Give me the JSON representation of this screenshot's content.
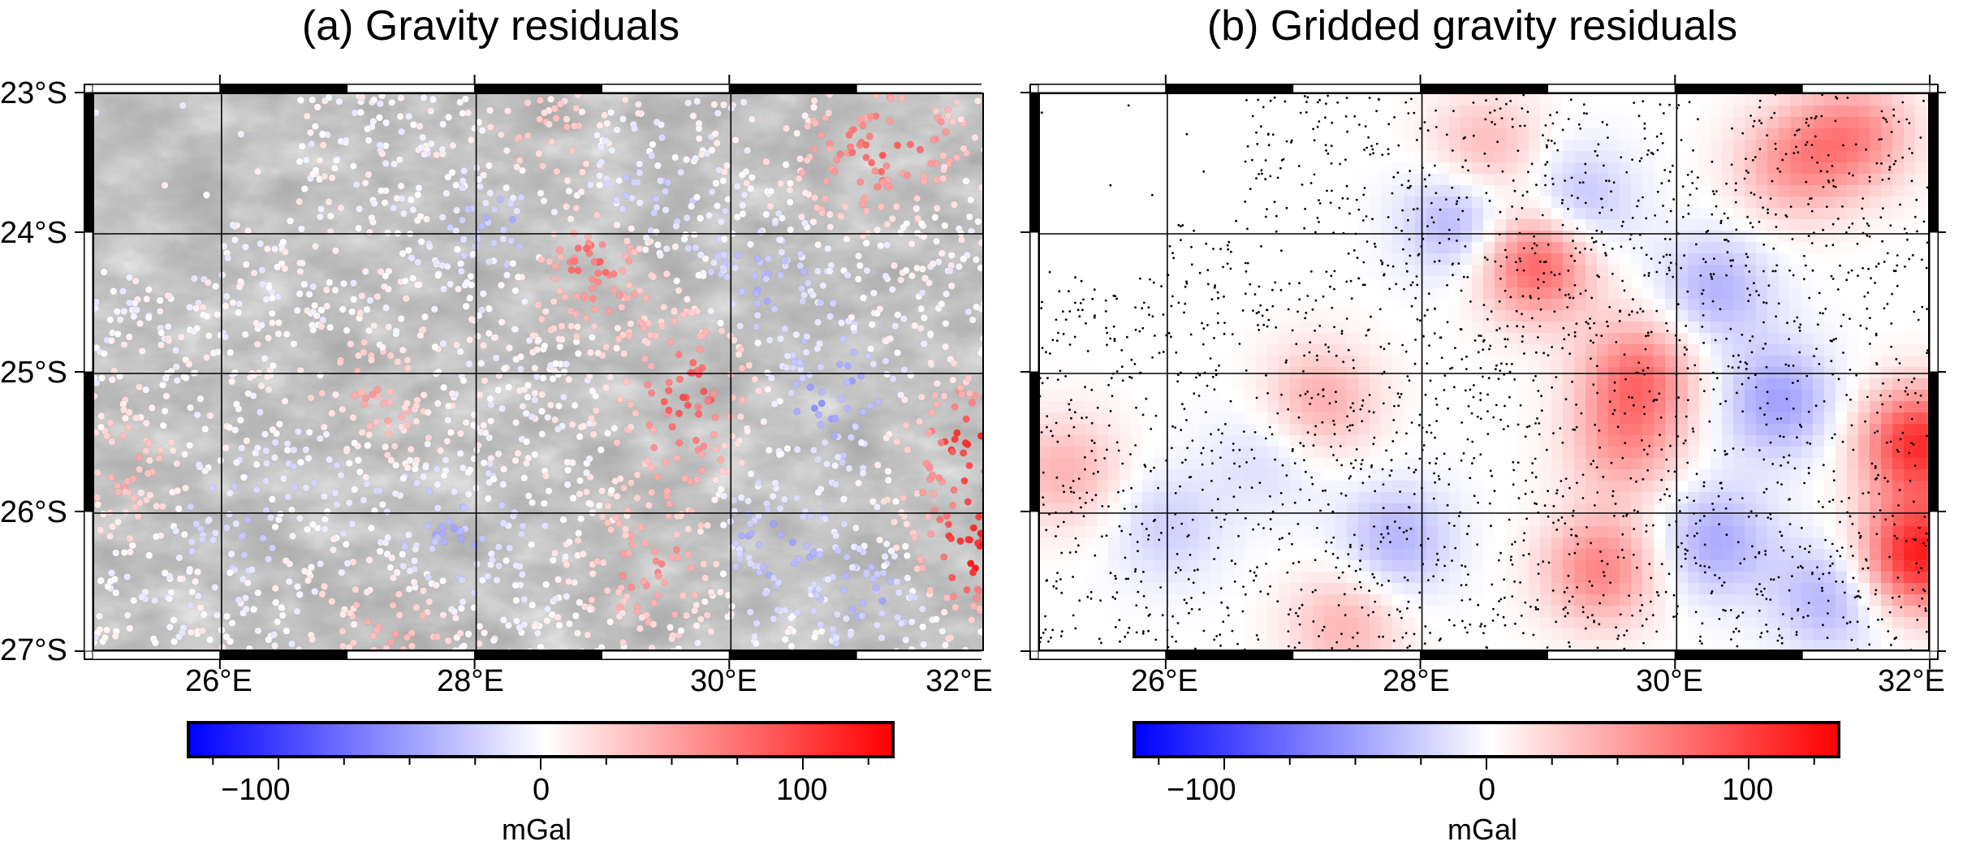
{
  "panels": [
    {
      "title": "(a) Gravity residuals",
      "layer": "hillshade with colored survey points",
      "colorbar": {
        "ticks": [
          "−100",
          "0",
          "100"
        ],
        "label": "mGal"
      }
    },
    {
      "title": "(b) Gridded gravity residuals",
      "layer": "gridded residuals with station dots",
      "colorbar": {
        "ticks": [
          "−100",
          "0",
          "100"
        ],
        "label": "mGal"
      }
    }
  ],
  "axes": {
    "lat_labels": [
      "23°S",
      "24°S",
      "25°S",
      "26°S",
      "27°S"
    ],
    "lon_labels": [
      "26°E",
      "28°E",
      "30°E",
      "32°E"
    ]
  },
  "chart_data": {
    "type": "heatmap",
    "region": {
      "lon": [
        25,
        32
      ],
      "lat": [
        -27,
        -23
      ]
    },
    "lat_ticks": [
      -23,
      -24,
      -25,
      -26,
      -27
    ],
    "lon_ticks": [
      26,
      28,
      30,
      32
    ],
    "grid_lines": true,
    "colormap": {
      "low": "#0000ff",
      "mid": "#ffffff",
      "high": "#ff0000",
      "range": [
        -135,
        135
      ],
      "unit": "mGal"
    },
    "anomalies": [
      {
        "lon": 28.9,
        "lat": -24.2,
        "value": 90
      },
      {
        "lon": 27.2,
        "lat": -25.2,
        "value": 45
      },
      {
        "lon": 28.5,
        "lat": -23.4,
        "value": 40
      },
      {
        "lon": 29.7,
        "lat": -25.0,
        "value": 70
      },
      {
        "lon": 29.6,
        "lat": -25.5,
        "value": 50
      },
      {
        "lon": 29.4,
        "lat": -26.4,
        "value": 65
      },
      {
        "lon": 31.9,
        "lat": -26.3,
        "value": 120
      },
      {
        "lon": 31.9,
        "lat": -25.5,
        "value": 110
      },
      {
        "lon": 31.4,
        "lat": -23.3,
        "value": 60
      },
      {
        "lon": 30.9,
        "lat": -23.5,
        "value": 50
      },
      {
        "lon": 25.2,
        "lat": -25.7,
        "value": 40
      },
      {
        "lon": 27.4,
        "lat": -26.8,
        "value": 40
      },
      {
        "lon": 28.3,
        "lat": -23.9,
        "value": -45
      },
      {
        "lon": 29.2,
        "lat": -23.8,
        "value": -40
      },
      {
        "lon": 30.8,
        "lat": -25.2,
        "value": -50
      },
      {
        "lon": 30.3,
        "lat": -24.4,
        "value": -40
      },
      {
        "lon": 27.8,
        "lat": -26.2,
        "value": -40
      },
      {
        "lon": 30.3,
        "lat": -26.2,
        "value": -45
      },
      {
        "lon": 31.2,
        "lat": -26.6,
        "value": -40
      },
      {
        "lon": 26.0,
        "lat": -26.1,
        "value": -25
      },
      {
        "lon": 26.8,
        "lat": -25.6,
        "value": -20
      }
    ]
  }
}
